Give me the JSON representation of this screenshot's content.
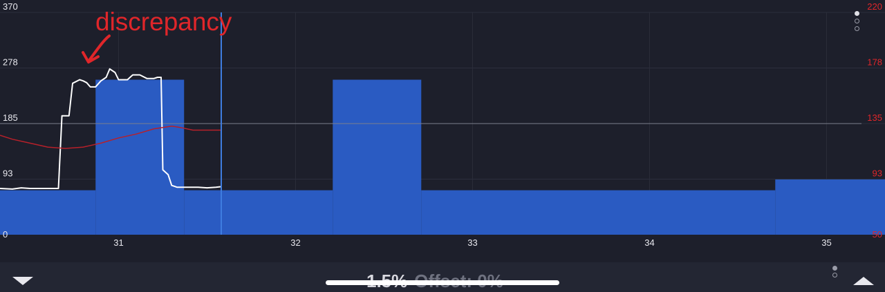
{
  "chart_data": {
    "type": "line",
    "x_ticks": [
      "31",
      "32",
      "33",
      "34",
      "35"
    ],
    "left_axis": {
      "ticks": [
        "370",
        "278",
        "185",
        "93",
        "0"
      ],
      "ylim": [
        0,
        370
      ]
    },
    "right_axis": {
      "ticks": [
        "220",
        "178",
        "135",
        "93",
        "50"
      ],
      "ylim": [
        50,
        220
      ],
      "color": "#e0262a"
    },
    "xlim": [
      30.33,
      35.33
    ],
    "series": [
      {
        "kind": "bars",
        "color": "#2a5bc2",
        "segments": [
          {
            "x0": 30.33,
            "x1": 30.87,
            "y": 74
          },
          {
            "x0": 30.87,
            "x1": 31.37,
            "y": 258
          },
          {
            "x0": 31.37,
            "x1": 32.21,
            "y": 74
          },
          {
            "x0": 32.21,
            "x1": 32.71,
            "y": 258
          },
          {
            "x0": 32.71,
            "x1": 34.71,
            "y": 74
          },
          {
            "x0": 34.71,
            "x1": 35.33,
            "y": 92
          }
        ]
      },
      {
        "kind": "line",
        "color": "#ffffff",
        "axis": "left",
        "points": [
          [
            30.33,
            77
          ],
          [
            30.4,
            76
          ],
          [
            30.45,
            78
          ],
          [
            30.5,
            77
          ],
          [
            30.55,
            77
          ],
          [
            30.6,
            77
          ],
          [
            30.66,
            77
          ],
          [
            30.68,
            198
          ],
          [
            30.72,
            198
          ],
          [
            30.74,
            252
          ],
          [
            30.78,
            258
          ],
          [
            30.8,
            256
          ],
          [
            30.82,
            253
          ],
          [
            30.84,
            246
          ],
          [
            30.87,
            246
          ],
          [
            30.9,
            256
          ],
          [
            30.93,
            262
          ],
          [
            30.95,
            276
          ],
          [
            30.98,
            270
          ],
          [
            31.0,
            258
          ],
          [
            31.05,
            258
          ],
          [
            31.08,
            266
          ],
          [
            31.12,
            266
          ],
          [
            31.16,
            260
          ],
          [
            31.2,
            260
          ],
          [
            31.22,
            262
          ],
          [
            31.24,
            262
          ],
          [
            31.25,
            108
          ],
          [
            31.28,
            100
          ],
          [
            31.3,
            82
          ],
          [
            31.33,
            79
          ],
          [
            31.45,
            79
          ],
          [
            31.5,
            78
          ],
          [
            31.55,
            79
          ],
          [
            31.58,
            80
          ]
        ]
      },
      {
        "kind": "line",
        "color": "#b8202a",
        "axis": "right",
        "points": [
          [
            30.33,
            126
          ],
          [
            30.4,
            123
          ],
          [
            30.5,
            120
          ],
          [
            30.6,
            117
          ],
          [
            30.7,
            116
          ],
          [
            30.8,
            117
          ],
          [
            30.9,
            120
          ],
          [
            31.0,
            124
          ],
          [
            31.1,
            127
          ],
          [
            31.2,
            131
          ],
          [
            31.3,
            133
          ],
          [
            31.35,
            132
          ],
          [
            31.42,
            130
          ],
          [
            31.58,
            130
          ]
        ]
      }
    ],
    "cursor_x": 31.58,
    "reference_line_y": 185,
    "grid": true
  },
  "annotation": {
    "text": "discrepancy"
  },
  "footer": {
    "percent": "1.5%",
    "offset": "Offset: 0%"
  },
  "colors": {
    "background": "#1d1f2b",
    "footer": "#232633",
    "accent": "#2a5bc2",
    "cursor": "#3f7de0",
    "annotation": "#e0262a"
  },
  "icons": {
    "collapse": "triangle-down",
    "expand": "triangle-up",
    "pager": "page-dots"
  }
}
